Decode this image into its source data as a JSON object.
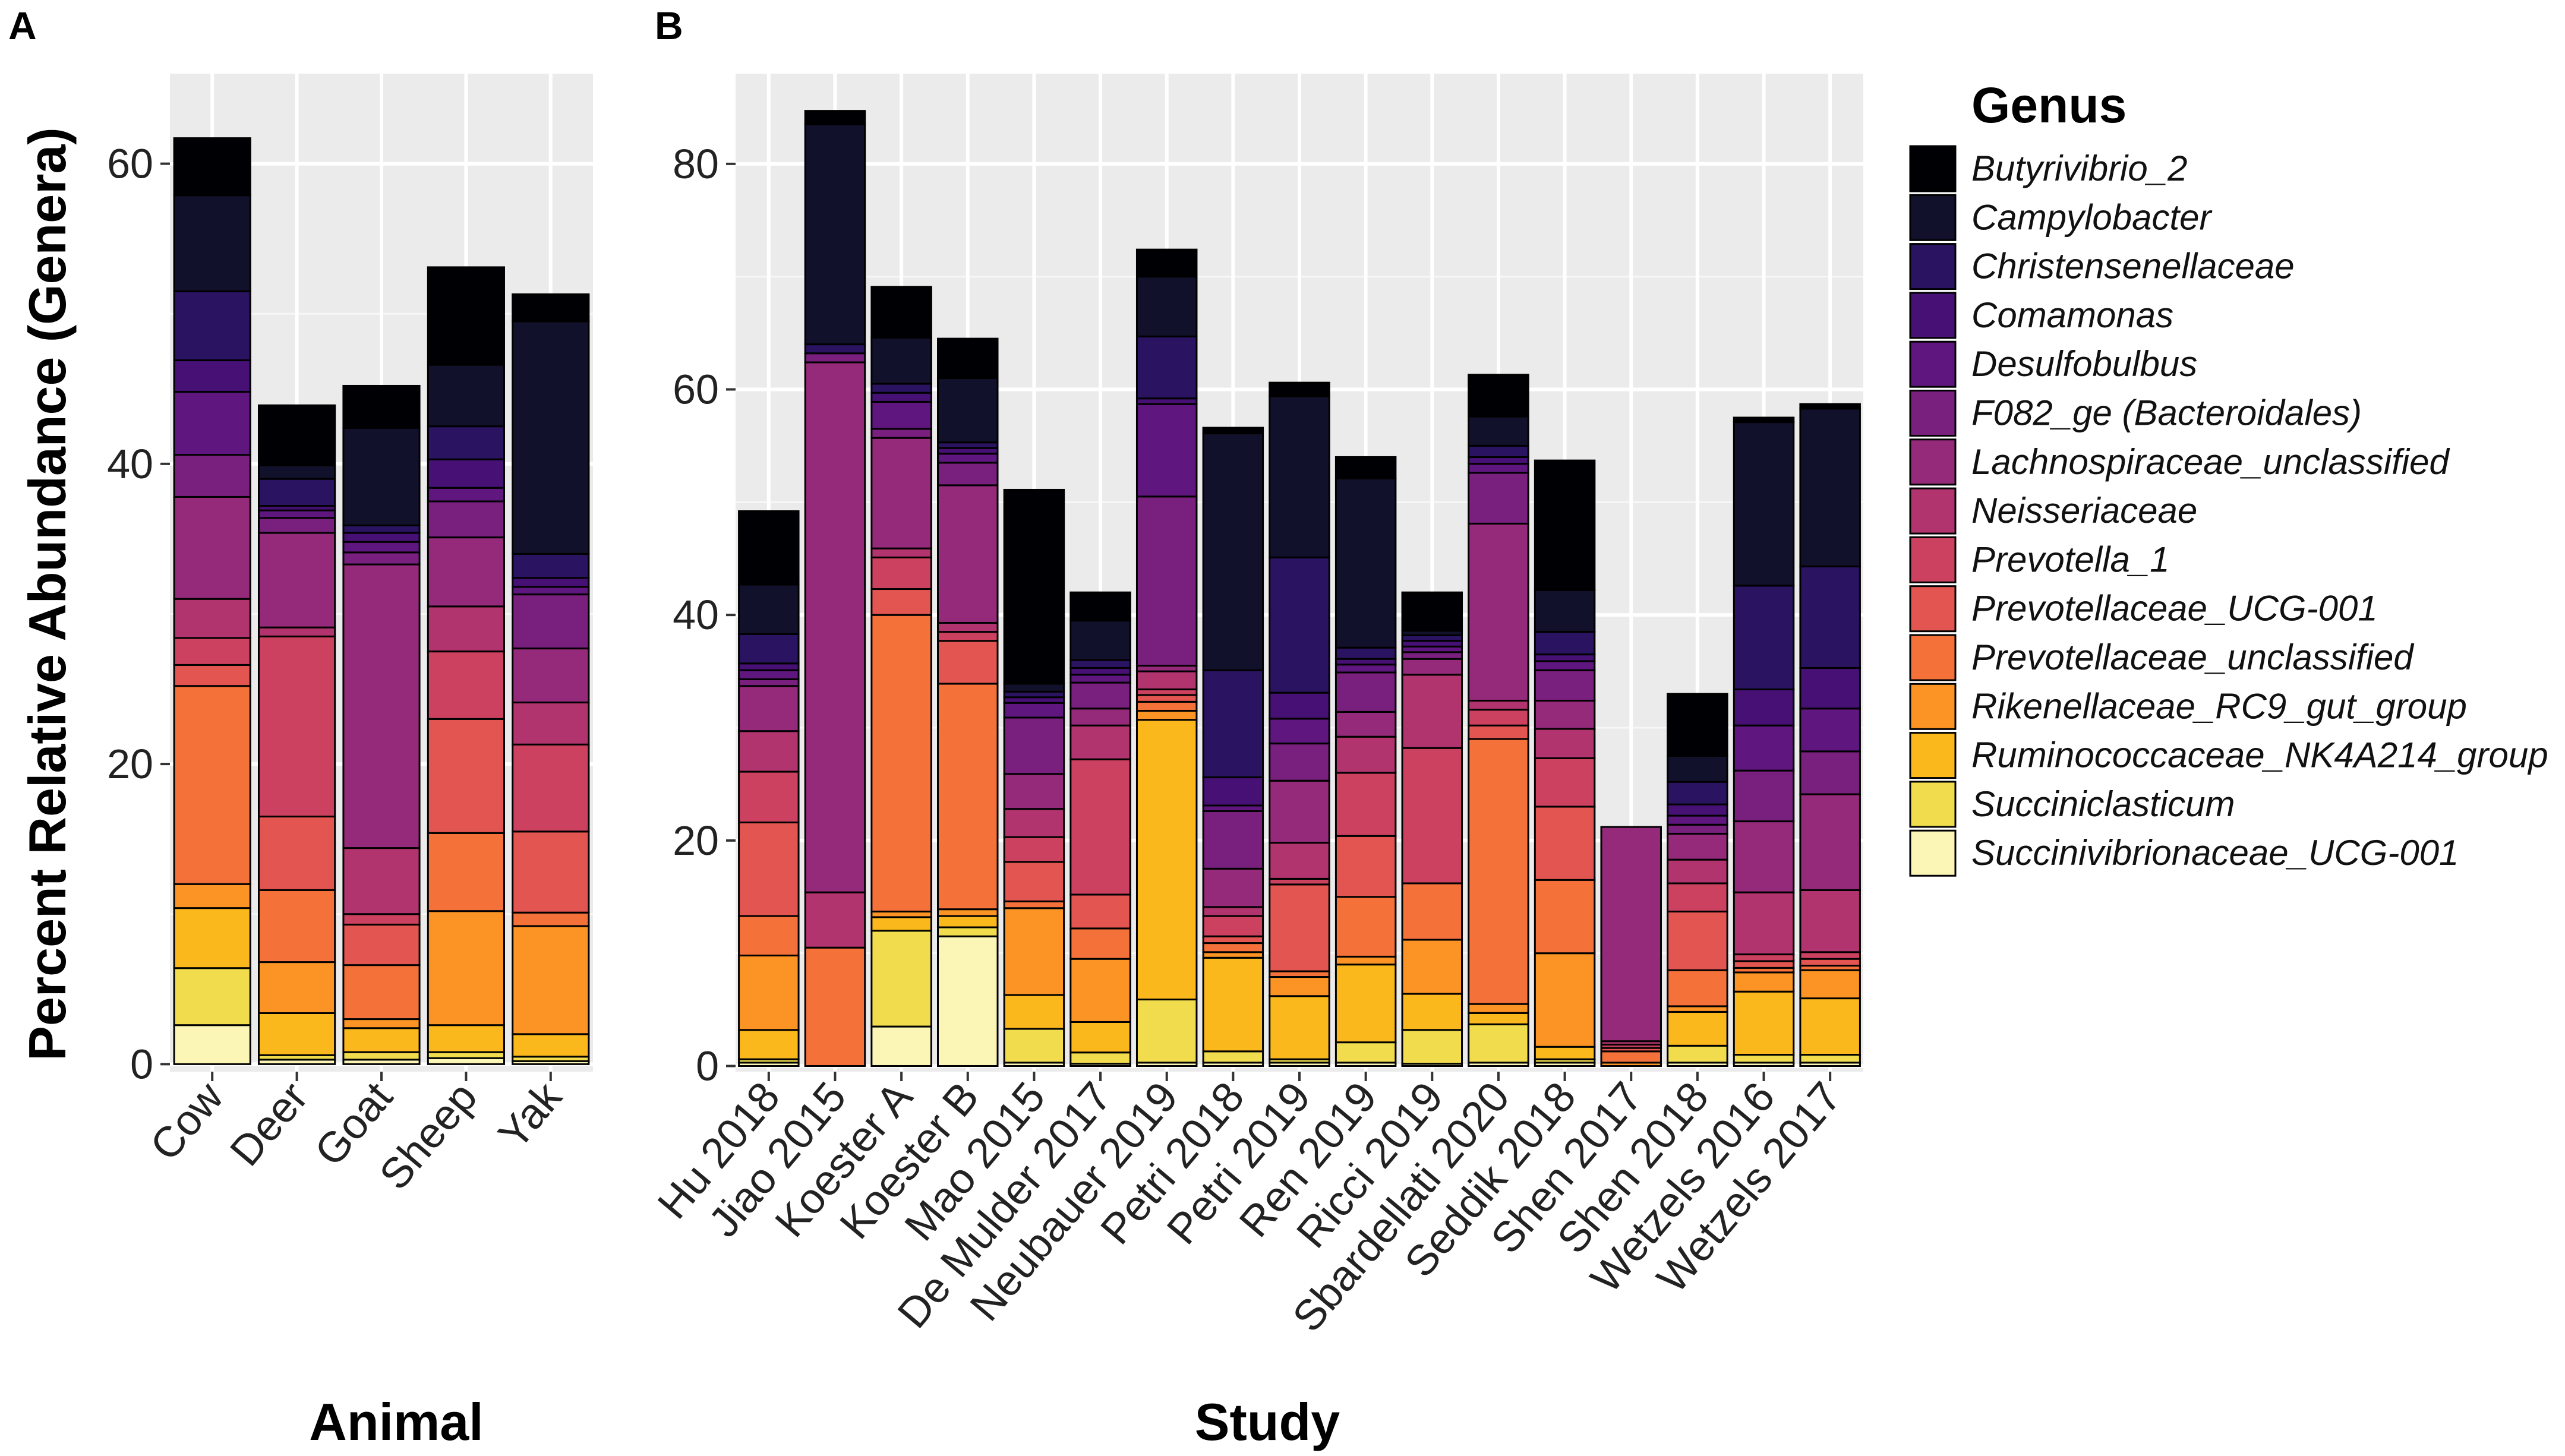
{
  "figure": {
    "panel_a_letter": "A",
    "panel_b_letter": "B"
  },
  "chart_data": [
    {
      "type": "bar",
      "stacked": true,
      "panel": "A",
      "title": "",
      "xlabel": "Animal",
      "ylabel": "Percent Relative Abundance (Genera)",
      "ylim": [
        -0.5,
        66
      ],
      "yticks": [
        0,
        20,
        40,
        60
      ],
      "grid": true,
      "categories": [
        "Cow",
        "Deer",
        "Goat",
        "Sheep",
        "Yak"
      ],
      "series": [
        {
          "name": "Succinivibrionaceae_UCG-001",
          "values": [
            2.6,
            0.3,
            0.3,
            0.4,
            0.2
          ]
        },
        {
          "name": "Succiniclasticum",
          "values": [
            3.8,
            0.3,
            0.5,
            0.4,
            0.3
          ]
        },
        {
          "name": "Ruminococcaceae_NK4A214_group",
          "values": [
            4.0,
            2.8,
            1.6,
            1.8,
            1.5
          ]
        },
        {
          "name": "Rikenellaceae_RC9_gut_group",
          "values": [
            1.6,
            3.4,
            0.6,
            7.6,
            7.2
          ]
        },
        {
          "name": "Prevotellaceae_unclassified",
          "values": [
            13.2,
            4.8,
            3.6,
            5.2,
            0.9
          ]
        },
        {
          "name": "Prevotellaceae_UCG-001",
          "values": [
            1.4,
            4.9,
            2.7,
            7.6,
            5.4
          ]
        },
        {
          "name": "Prevotella_1",
          "values": [
            1.8,
            12.0,
            0.7,
            4.5,
            5.8
          ]
        },
        {
          "name": "Neisseriaceae",
          "values": [
            2.6,
            0.6,
            4.4,
            3.0,
            2.8
          ]
        },
        {
          "name": "Lachnospiraceae_unclassified",
          "values": [
            6.8,
            6.3,
            18.9,
            4.6,
            3.6
          ]
        },
        {
          "name": "F082_ge (Bacteroidales)",
          "values": [
            2.8,
            1.0,
            0.8,
            2.4,
            3.6
          ]
        },
        {
          "name": "Desulfobulbus",
          "values": [
            4.2,
            0.5,
            0.7,
            0.9,
            0.5
          ]
        },
        {
          "name": "Comamonas",
          "values": [
            2.1,
            0.3,
            0.6,
            1.9,
            0.6
          ]
        },
        {
          "name": "Christensenellaceae",
          "values": [
            4.6,
            1.8,
            0.5,
            2.2,
            1.6
          ]
        },
        {
          "name": "Campylobacter",
          "values": [
            6.4,
            0.9,
            6.5,
            4.1,
            15.5
          ]
        },
        {
          "name": "Butyrivibrio_2",
          "values": [
            3.8,
            4.0,
            2.8,
            6.5,
            1.8
          ]
        }
      ]
    },
    {
      "type": "bar",
      "stacked": true,
      "panel": "B",
      "title": "",
      "xlabel": "Study",
      "ylabel": "",
      "ylim": [
        -0.5,
        88
      ],
      "yticks": [
        0,
        20,
        40,
        60,
        80
      ],
      "grid": true,
      "categories": [
        "Hu 2018",
        "Jiao 2015",
        "Koester A",
        "Koester B",
        "Mao 2015",
        "De Mulder 2017",
        "Neubauer 2019",
        "Petri 2018",
        "Petri 2019",
        "Ren 2019",
        "Ricci 2019",
        "Sbardellati 2020",
        "Seddik 2018",
        "Shen 2017",
        "Shen 2018",
        "Wetzels 2016",
        "Wetzels 2017"
      ],
      "series": [
        {
          "name": "Succinivibrionaceae_UCG-001",
          "values": [
            0.3,
            0,
            3.5,
            11.5,
            0.3,
            0.2,
            0.3,
            0.3,
            0.3,
            0.3,
            0.2,
            0.3,
            0.3,
            0,
            0.3,
            0.3,
            0.3
          ]
        },
        {
          "name": "Succiniclasticum",
          "values": [
            0.3,
            0,
            8.5,
            0.8,
            3.0,
            1.0,
            5.6,
            1.0,
            0.3,
            1.8,
            3.0,
            3.4,
            0.3,
            0,
            1.5,
            0.7,
            0.7
          ]
        },
        {
          "name": "Ruminococcaceae_NK4A214_group",
          "values": [
            2.6,
            0,
            1.2,
            1.0,
            3.0,
            2.7,
            24.8,
            8.3,
            5.6,
            6.9,
            3.2,
            1.0,
            1.1,
            0,
            3.0,
            5.6,
            5.0
          ]
        },
        {
          "name": "Rikenellaceae_RC9_gut_group",
          "values": [
            6.6,
            0,
            0.5,
            0.6,
            7.7,
            5.6,
            0.8,
            0.5,
            1.7,
            0.7,
            4.8,
            0.8,
            8.3,
            0.3,
            0.5,
            1.7,
            2.5
          ]
        },
        {
          "name": "Prevotellaceae_unclassified",
          "values": [
            3.5,
            10.5,
            26.3,
            20.0,
            0.6,
            2.7,
            0.8,
            0.8,
            0.5,
            5.3,
            5.0,
            23.5,
            6.5,
            1.0,
            3.2,
            0.4,
            0.4
          ]
        },
        {
          "name": "Prevotellaceae_UCG-001",
          "values": [
            8.3,
            0,
            2.3,
            3.8,
            3.5,
            3.0,
            0.6,
            0.6,
            7.7,
            5.4,
            0,
            1.2,
            6.5,
            0.3,
            5.2,
            0.6,
            0.6
          ]
        },
        {
          "name": "Prevotella_1",
          "values": [
            4.5,
            0,
            2.8,
            0.8,
            2.2,
            12.0,
            0.5,
            1.8,
            0.5,
            5.6,
            12.0,
            1.4,
            4.3,
            0.3,
            2.5,
            0.6,
            0.6
          ]
        },
        {
          "name": "Neisseriaceae",
          "values": [
            3.6,
            4.9,
            0.8,
            0.8,
            2.5,
            3.0,
            1.6,
            0.8,
            3.2,
            3.2,
            6.5,
            0.8,
            2.6,
            0.3,
            2.1,
            5.5,
            5.5
          ]
        },
        {
          "name": "Lachnospiraceae_unclassified",
          "values": [
            4.0,
            47.0,
            9.8,
            12.2,
            3.1,
            1.5,
            0.5,
            3.4,
            5.5,
            2.2,
            1.4,
            15.7,
            2.5,
            19.0,
            2.3,
            6.3,
            8.5
          ]
        },
        {
          "name": "F082_ge (Bacteroidales)",
          "values": [
            0.6,
            0.8,
            0.8,
            2.0,
            5.0,
            2.3,
            15.0,
            5.1,
            3.3,
            3.5,
            0.6,
            4.5,
            2.7,
            0,
            0.8,
            4.5,
            3.8
          ]
        },
        {
          "name": "Desulfobulbus",
          "values": [
            0.8,
            0,
            2.4,
            0.8,
            1.3,
            0.7,
            8.2,
            0.5,
            2.2,
            0.7,
            0.5,
            0.8,
            0.8,
            0,
            0.8,
            4.0,
            3.8
          ]
        },
        {
          "name": "Comamonas",
          "values": [
            0.6,
            0,
            0.8,
            0.5,
            0.5,
            0.6,
            0.5,
            2.5,
            2.3,
            0.5,
            0.5,
            0.6,
            0.6,
            0,
            1.0,
            3.2,
            3.6
          ]
        },
        {
          "name": "Christensenellaceae",
          "values": [
            2.6,
            0.8,
            0.8,
            0.5,
            0.5,
            0.7,
            5.5,
            9.5,
            12.0,
            1.0,
            0.5,
            1.0,
            2.0,
            0,
            2.0,
            9.2,
            9.0
          ]
        },
        {
          "name": "Campylobacter",
          "values": [
            4.4,
            19.5,
            4.1,
            5.7,
            0.7,
            3.5,
            5.3,
            21.0,
            14.3,
            15.0,
            0.4,
            2.6,
            3.7,
            0,
            2.3,
            14.5,
            14.0
          ]
        },
        {
          "name": "Butyrivibrio_2",
          "values": [
            6.5,
            1.2,
            4.5,
            3.5,
            17.2,
            2.5,
            2.4,
            0.5,
            1.2,
            1.9,
            3.4,
            3.7,
            11.5,
            0,
            5.5,
            0.4,
            0.4
          ]
        }
      ]
    }
  ],
  "legend": {
    "title": "Genus",
    "entries": [
      "Butyrivibrio_2",
      "Campylobacter",
      "Christensenellaceae",
      "Comamonas",
      "Desulfobulbus",
      "F082_ge (Bacteroidales)",
      "Lachnospiraceae_unclassified",
      "Neisseriaceae",
      "Prevotella_1",
      "Prevotellaceae_UCG-001",
      "Prevotellaceae_unclassified",
      "Rikenellaceae_RC9_gut_group",
      "Ruminococcaceae_NK4A214_group",
      "Succiniclasticum",
      "Succinivibrionaceae_UCG-001"
    ],
    "colors": [
      "#000004",
      "#12112b",
      "#2a1361",
      "#471075",
      "#5f177f",
      "#79207e",
      "#952a7a",
      "#b1346e",
      "#cd4160",
      "#e35550",
      "#f4713a",
      "#fb9424",
      "#fbb81d",
      "#f0dc4c",
      "#fcf6b6"
    ]
  }
}
